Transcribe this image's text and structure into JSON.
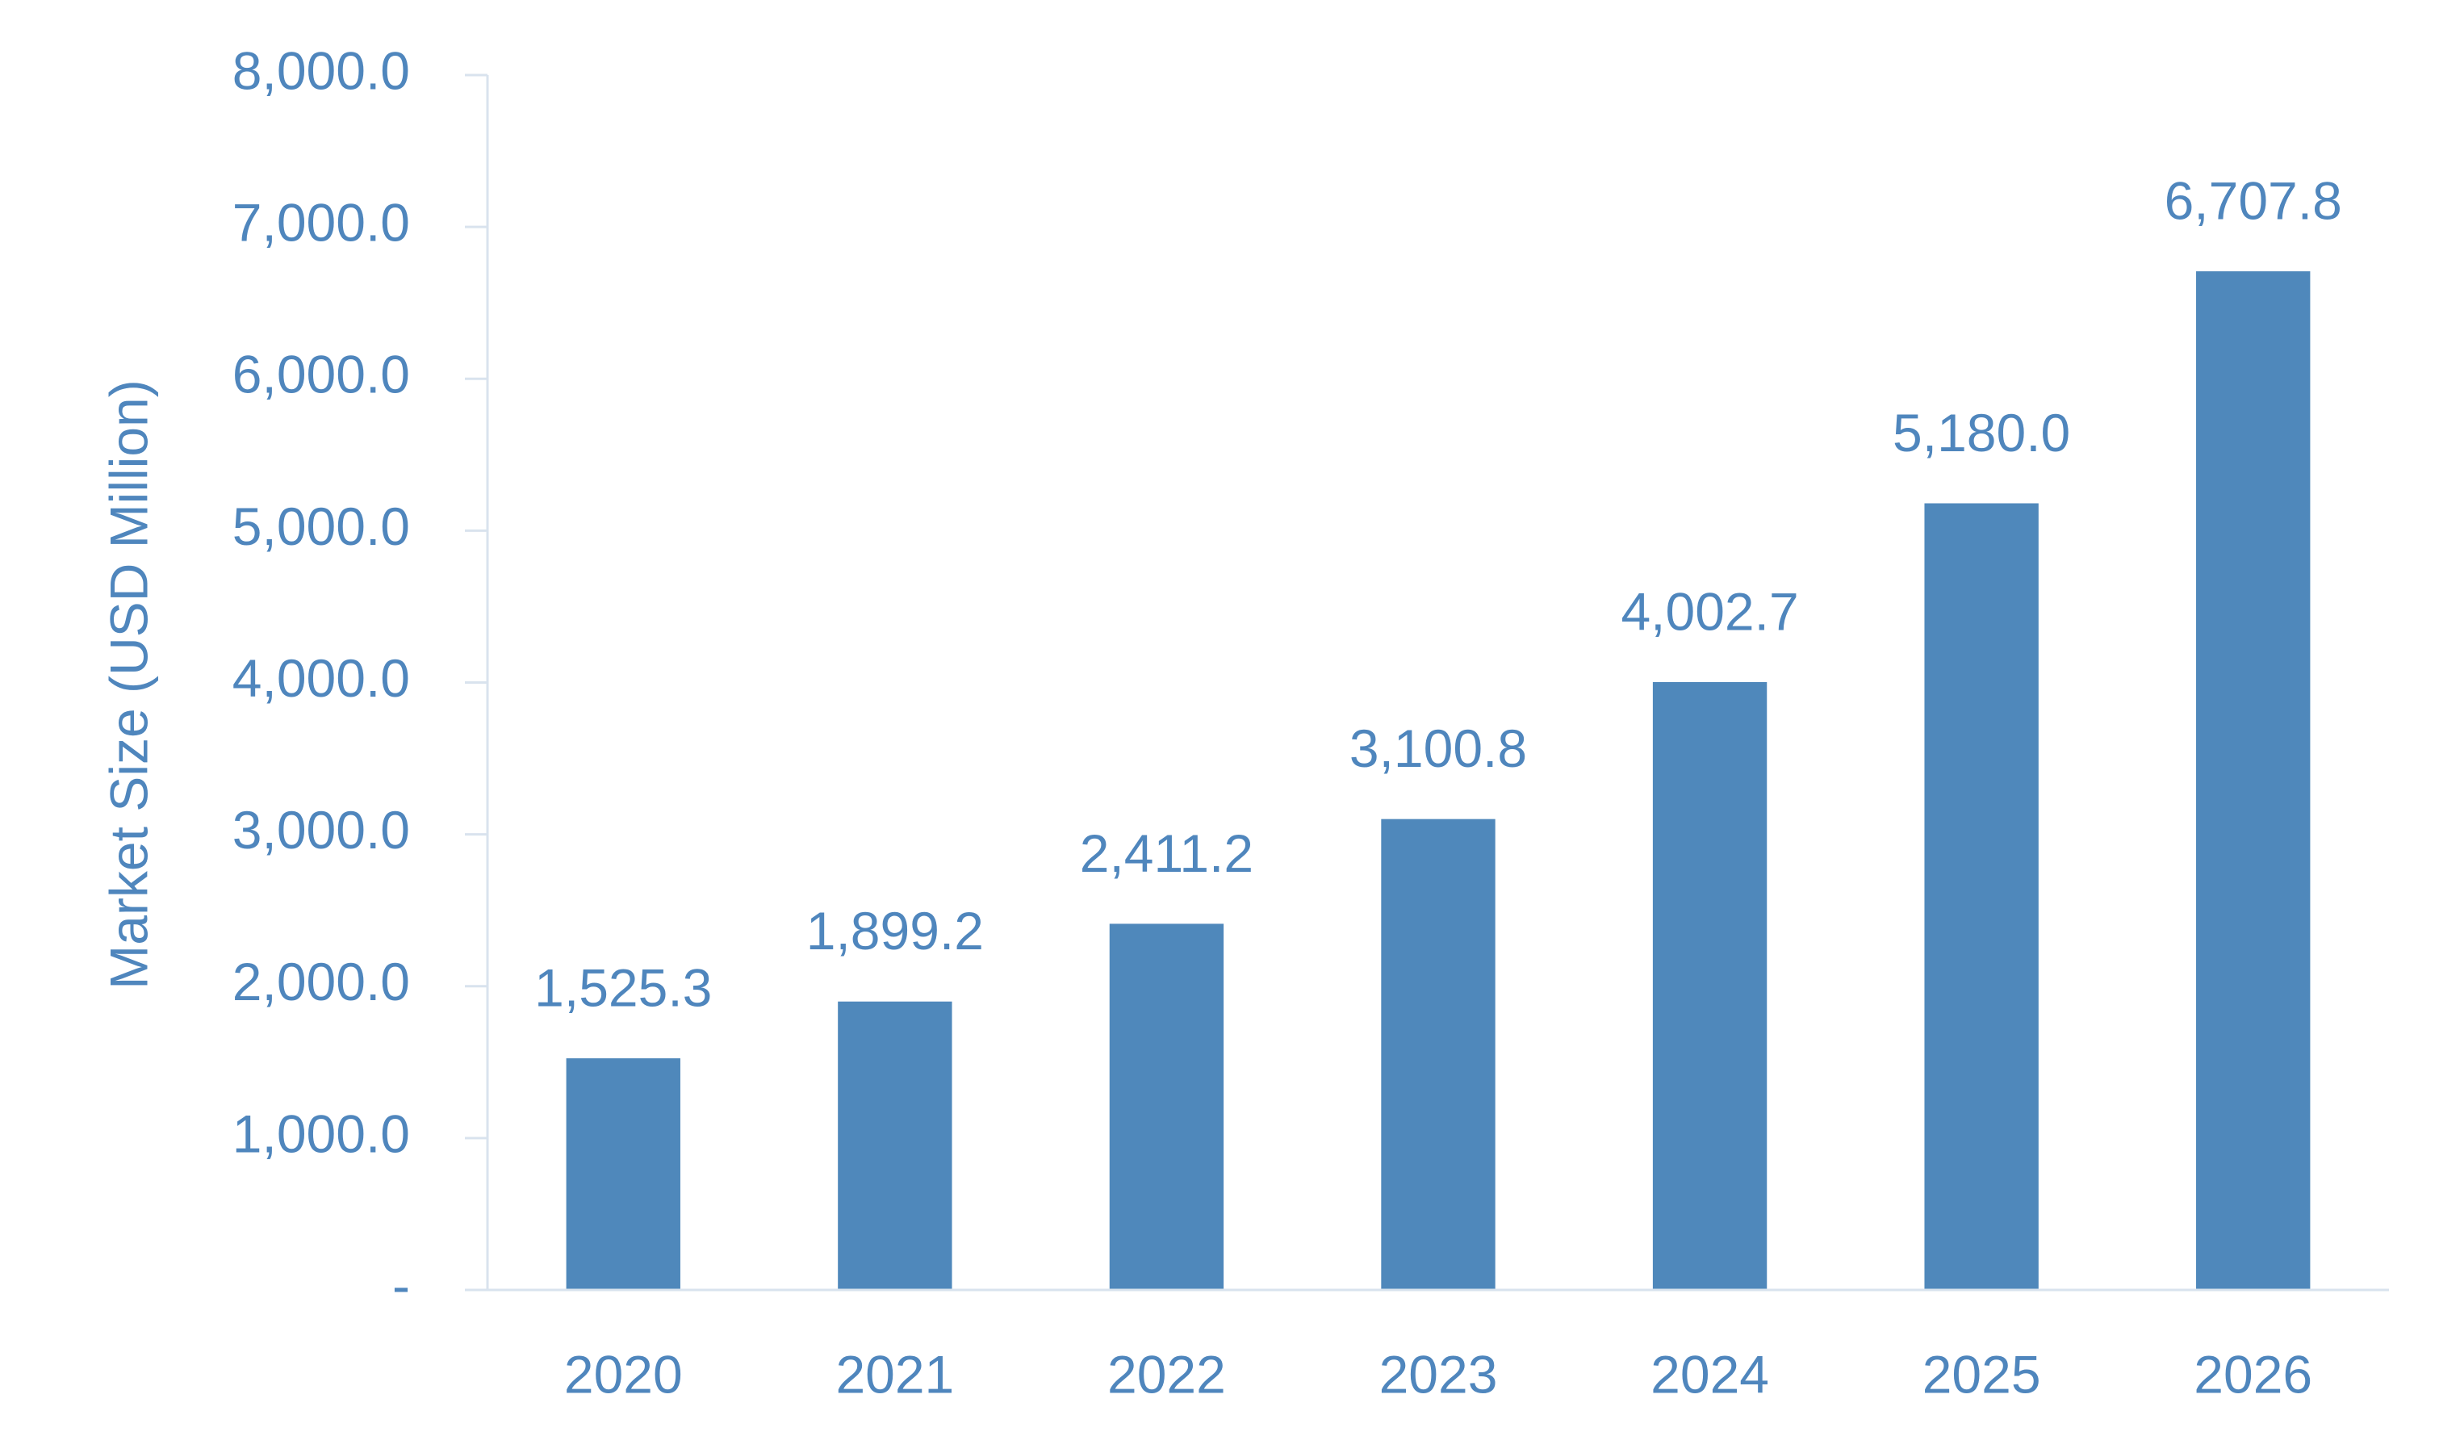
{
  "chart_data": {
    "type": "bar",
    "y_label": "Market Size (USD Million)",
    "categories": [
      "2020",
      "2021",
      "2022",
      "2023",
      "2024",
      "2025",
      "2026"
    ],
    "values": [
      1525.3,
      1899.2,
      2411.2,
      3100.8,
      4002.7,
      5180.0,
      6707.8
    ],
    "value_labels": [
      "1,525.3",
      "1,899.2",
      "2,411.2",
      "3,100.8",
      "4,002.7",
      "5,180.0",
      "6,707.8"
    ],
    "color": "#4f88bb",
    "ylim": [
      0,
      8000
    ],
    "yticks": [
      {
        "value": 0,
        "label": "-"
      },
      {
        "value": 1000,
        "label": "1,000.0"
      },
      {
        "value": 2000,
        "label": "2,000.0"
      },
      {
        "value": 3000,
        "label": "3,000.0"
      },
      {
        "value": 4000,
        "label": "4,000.0"
      },
      {
        "value": 5000,
        "label": "5,000.0"
      },
      {
        "value": 6000,
        "label": "6,000.0"
      },
      {
        "value": 7000,
        "label": "7,000.0"
      },
      {
        "value": 8000,
        "label": "8,000.0"
      }
    ],
    "grid": false
  }
}
